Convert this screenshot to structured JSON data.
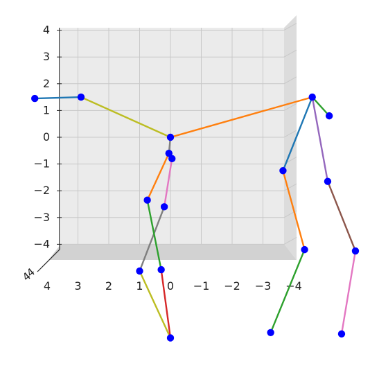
{
  "chart_data": {
    "type": "scatter",
    "subtype": "3d-skeleton-pose",
    "title": "",
    "xlabel": "",
    "ylabel": "",
    "zlabel": "",
    "grid": true,
    "pane_color": "#ebebeb",
    "grid_color": "#c8c8c8",
    "joint_color": "#0000ff",
    "x_axis": {
      "range": [
        4,
        -4
      ],
      "tick_values": [
        4,
        3,
        2,
        1,
        0,
        -1,
        -2,
        -3,
        -4
      ],
      "tick_labels": [
        "4",
        "3",
        "2",
        "1",
        "0",
        "−1",
        "−2",
        "−3",
        "−4"
      ]
    },
    "y_axis": {
      "range": [
        -4,
        4
      ],
      "tick_values": [
        4,
        3,
        2,
        1,
        0,
        -1,
        -2,
        -3,
        -4
      ],
      "tick_labels": [
        "4",
        "3",
        "2",
        "1",
        "0",
        "−1",
        "−2",
        "−3",
        "−4"
      ]
    },
    "depth_axis_tick_labels": [
      "4",
      "4"
    ],
    "joints": [
      {
        "id": "j0",
        "x": 4.4,
        "y": 1.45
      },
      {
        "id": "j1",
        "x": 2.9,
        "y": 1.5
      },
      {
        "id": "j2",
        "x": 0.0,
        "y": 0.0
      },
      {
        "id": "j3",
        "x": 0.05,
        "y": -0.6
      },
      {
        "id": "j4",
        "x": -0.05,
        "y": -0.8
      },
      {
        "id": "j5",
        "x": 0.75,
        "y": -2.35
      },
      {
        "id": "j6",
        "x": 0.2,
        "y": -2.6
      },
      {
        "id": "j7",
        "x": 1.0,
        "y": -5.0
      },
      {
        "id": "j8",
        "x": 0.3,
        "y": -4.95
      },
      {
        "id": "j9",
        "x": 0.0,
        "y": -7.5
      },
      {
        "id": "j10",
        "x": -4.6,
        "y": 1.5
      },
      {
        "id": "j11",
        "x": -5.15,
        "y": 0.8
      },
      {
        "id": "j12",
        "x": -3.65,
        "y": -1.25
      },
      {
        "id": "j13",
        "x": -5.1,
        "y": -1.65
      },
      {
        "id": "j14",
        "x": -4.35,
        "y": -4.2
      },
      {
        "id": "j15",
        "x": -6.0,
        "y": -4.25
      },
      {
        "id": "j16",
        "x": -3.25,
        "y": -7.3
      },
      {
        "id": "j17",
        "x": -5.55,
        "y": -7.35
      }
    ],
    "bones": [
      {
        "from": "j0",
        "to": "j1",
        "color": "#1f77b4"
      },
      {
        "from": "j1",
        "to": "j2",
        "color": "#bcbd22"
      },
      {
        "from": "j2",
        "to": "j10",
        "color": "#ff7f0e"
      },
      {
        "from": "j2",
        "to": "j3",
        "color": "#7f7f7f"
      },
      {
        "from": "j3",
        "to": "j5",
        "color": "#ff7f0e"
      },
      {
        "from": "j4",
        "to": "j6",
        "color": "#e377c2"
      },
      {
        "from": "j6",
        "to": "j7",
        "color": "#7f7f7f"
      },
      {
        "from": "j5",
        "to": "j8",
        "color": "#2ca02c"
      },
      {
        "from": "j7",
        "to": "j9",
        "color": "#bcbd22"
      },
      {
        "from": "j8",
        "to": "j9",
        "color": "#d62728"
      },
      {
        "from": "j10",
        "to": "j11",
        "color": "#2ca02c"
      },
      {
        "from": "j10",
        "to": "j12",
        "color": "#1f77b4"
      },
      {
        "from": "j10",
        "to": "j13",
        "color": "#9467bd"
      },
      {
        "from": "j12",
        "to": "j14",
        "color": "#ff7f0e"
      },
      {
        "from": "j13",
        "to": "j15",
        "color": "#8c564b"
      },
      {
        "from": "j14",
        "to": "j16",
        "color": "#2ca02c"
      },
      {
        "from": "j15",
        "to": "j17",
        "color": "#e377c2"
      }
    ]
  }
}
